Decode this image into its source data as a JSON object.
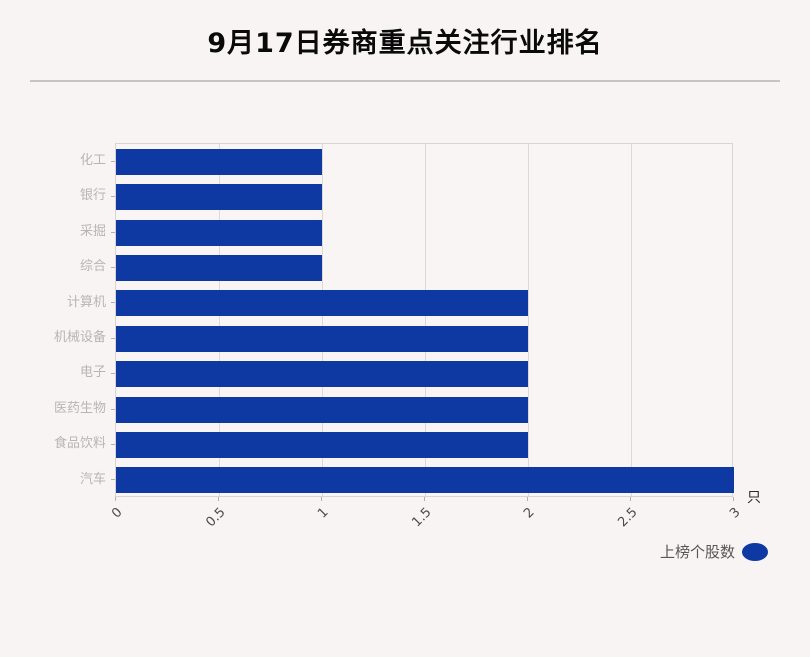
{
  "page": {
    "title": "9月17日券商重点关注行业排名"
  },
  "chart_data": {
    "type": "bar",
    "orientation": "horizontal",
    "title": "9月17日券商重点关注行业排名",
    "categories": [
      "化工",
      "银行",
      "采掘",
      "综合",
      "计算机",
      "机械设备",
      "电子",
      "医药生物",
      "食品饮料",
      "汽车"
    ],
    "values": [
      1,
      1,
      1,
      1,
      2,
      2,
      2,
      2,
      2,
      3
    ],
    "series_name": "上榜个股数",
    "unit": "只",
    "xlim": [
      0,
      3
    ],
    "xticks": [
      0,
      0.5,
      1,
      1.5,
      2,
      2.5,
      3
    ],
    "xtick_labels": [
      "0",
      "0.5",
      "1",
      "1.5",
      "2",
      "2.5",
      "3"
    ],
    "grid": true,
    "legend_position": "bottom-right",
    "colors": {
      "bar": "#0e38a2",
      "legend_marker": "#0e38a2",
      "grid": "#ddd9d9",
      "plot_border": "#d8d4d4",
      "background": "#f7f4f3",
      "y_label": "#b9b5b5",
      "x_label": "#4d4a4a",
      "title": "#0a0a0a"
    }
  }
}
